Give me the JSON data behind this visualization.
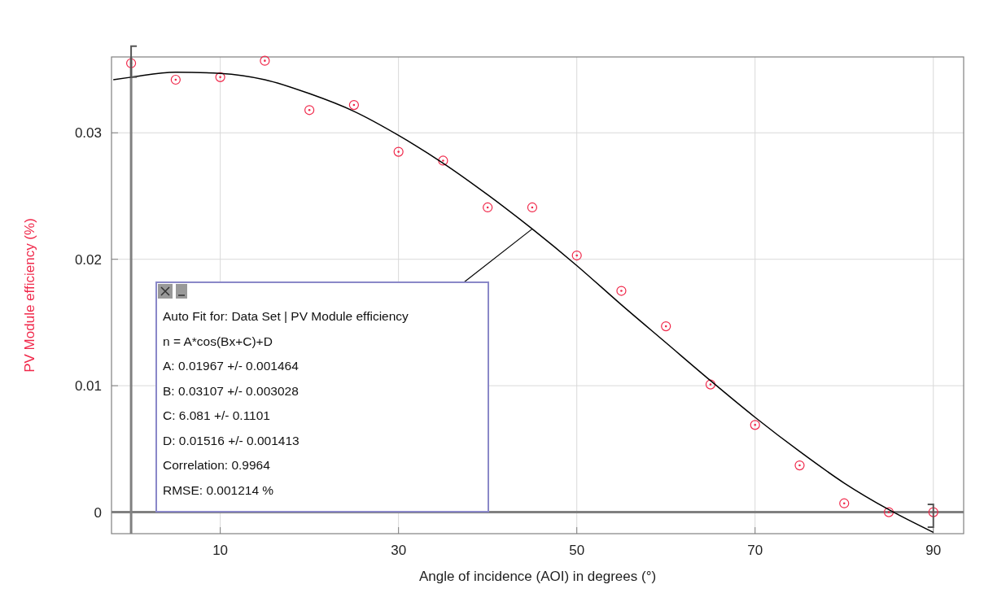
{
  "chart_data": {
    "type": "scatter",
    "xlabel": "Angle of incidence (AOI) in degrees (°)",
    "ylabel": "PV Module efficiency (%)",
    "xlim": [
      -2.2,
      93.4
    ],
    "ylim": [
      -0.0017,
      0.036
    ],
    "xticks": [
      10,
      30,
      50,
      70,
      90
    ],
    "yticks": [
      0,
      0.01,
      0.02,
      0.03
    ],
    "grid": true,
    "marker": "circle",
    "series": [
      {
        "color": "#f0284a",
        "x": [
          0,
          5,
          10,
          15,
          20,
          25,
          30,
          35,
          40,
          45,
          50,
          55,
          60,
          65,
          70,
          75,
          80,
          85,
          90
        ],
        "values": [
          0.0355,
          0.0342,
          0.0344,
          0.0357,
          0.0318,
          0.0322,
          0.0285,
          0.0278,
          0.0241,
          0.0241,
          0.0203,
          0.0175,
          0.0147,
          0.0101,
          0.0069,
          0.0037,
          0.0007,
          0,
          0
        ]
      },
      {
        "type": "line",
        "color": "#000000",
        "marker": "none",
        "line_style": "solid",
        "x": [
          -2,
          0,
          5,
          10,
          15,
          20,
          25,
          30,
          35,
          40,
          45,
          50,
          55,
          60,
          65,
          70,
          75,
          80,
          85,
          90
        ],
        "values": [
          0.0342,
          0.0344,
          0.0348,
          0.0347,
          0.0342,
          0.0331,
          0.0317,
          0.0298,
          0.0276,
          0.0251,
          0.0224,
          0.0195,
          0.0164,
          0.0134,
          0.0104,
          0.0075,
          0.0048,
          0.0023,
          0.0002,
          -0.0016
        ]
      }
    ],
    "annotations": [
      "Auto Fit for: Data Set | PV Module efficiency",
      "n = A*cos(Bx+C)+D",
      "A: 0.01967 +/- 0.001464",
      "B: 0.03107 +/- 0.003028",
      "C: 6.081 +/- 0.1101",
      "D: 0.01516 +/- 0.001413",
      "Correlation: 0.9964",
      "RMSE: 0.001214 %"
    ]
  }
}
